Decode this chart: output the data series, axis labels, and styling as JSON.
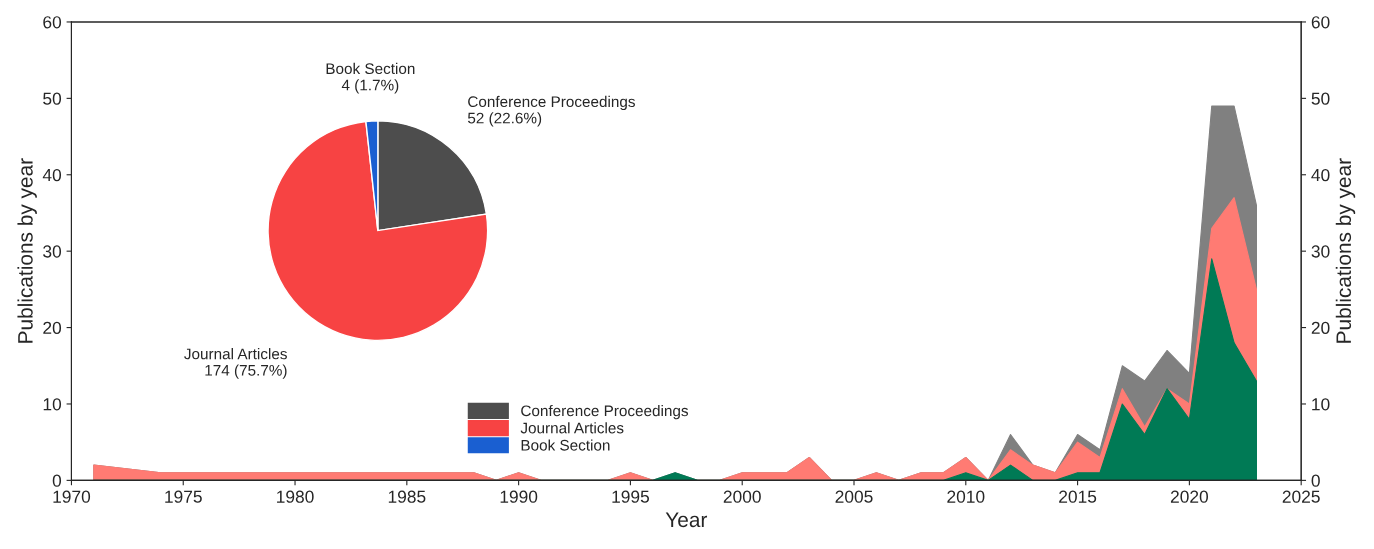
{
  "chart_data": [
    {
      "type": "area",
      "xlabel": "Year",
      "ylabel": "Publications by year",
      "y2label": "Publications by year",
      "x": [
        1971,
        1974,
        1975,
        1976,
        1977,
        1978,
        1979,
        1980,
        1981,
        1982,
        1983,
        1984,
        1985,
        1986,
        1987,
        1988,
        1989,
        1990,
        1991,
        1992,
        1993,
        1994,
        1995,
        1996,
        1997,
        1998,
        1999,
        2000,
        2001,
        2002,
        2003,
        2004,
        2005,
        2006,
        2007,
        2008,
        2009,
        2010,
        2011,
        2012,
        2013,
        2014,
        2015,
        2016,
        2017,
        2018,
        2019,
        2020,
        2021,
        2022,
        2023
      ],
      "series": [
        {
          "color": "#808080",
          "values": [
            2,
            1,
            1,
            1,
            1,
            1,
            1,
            1,
            1,
            1,
            1,
            1,
            1,
            1,
            1,
            1,
            0,
            1,
            0,
            0,
            0,
            0,
            1,
            0,
            1,
            0,
            0,
            1,
            1,
            1,
            3,
            0,
            0,
            1,
            0,
            1,
            1,
            3,
            0,
            6,
            2,
            1,
            6,
            4,
            15,
            13,
            17,
            14,
            49,
            49,
            36
          ]
        },
        {
          "color": "#ff7b73",
          "values": [
            2,
            1,
            1,
            1,
            1,
            1,
            1,
            1,
            1,
            1,
            1,
            1,
            1,
            1,
            1,
            1,
            0,
            1,
            0,
            0,
            0,
            0,
            1,
            0,
            0,
            0,
            0,
            1,
            1,
            1,
            3,
            0,
            0,
            1,
            0,
            1,
            1,
            3,
            0,
            4,
            2,
            1,
            5,
            3,
            12,
            7,
            12,
            10,
            33,
            37,
            25
          ]
        },
        {
          "color": "#007a55",
          "values": [
            0,
            0,
            0,
            0,
            0,
            0,
            0,
            0,
            0,
            0,
            0,
            0,
            0,
            0,
            0,
            0,
            0,
            0,
            0,
            0,
            0,
            0,
            0,
            0,
            1,
            0,
            0,
            0,
            0,
            0,
            0,
            0,
            0,
            0,
            0,
            0,
            0,
            1,
            0,
            2,
            0,
            0,
            1,
            1,
            10,
            6,
            12,
            8,
            29,
            18,
            13
          ]
        }
      ],
      "xlim": [
        1970,
        2025
      ],
      "xticks": [
        1970,
        1975,
        1980,
        1985,
        1990,
        1995,
        2000,
        2005,
        2010,
        2015,
        2020,
        2025
      ],
      "ylim": [
        0,
        60
      ],
      "yticks": [
        0,
        10,
        20,
        30,
        40,
        50,
        60
      ],
      "y2lim": [
        0,
        60
      ],
      "y2ticks": [
        0,
        10,
        20,
        30,
        40,
        50,
        60
      ]
    },
    {
      "type": "pie",
      "categories": [
        "Conference Proceedings",
        "Journal Articles",
        "Book Section"
      ],
      "values": [
        52,
        174,
        4
      ],
      "colors": [
        "#4d4d4d",
        "#f74343",
        "#1a5fd1"
      ],
      "value_labels": [
        "52 (22.6%)",
        "174 (75.7%)",
        "4 (1.7%)"
      ],
      "legend": "bottom right"
    }
  ]
}
